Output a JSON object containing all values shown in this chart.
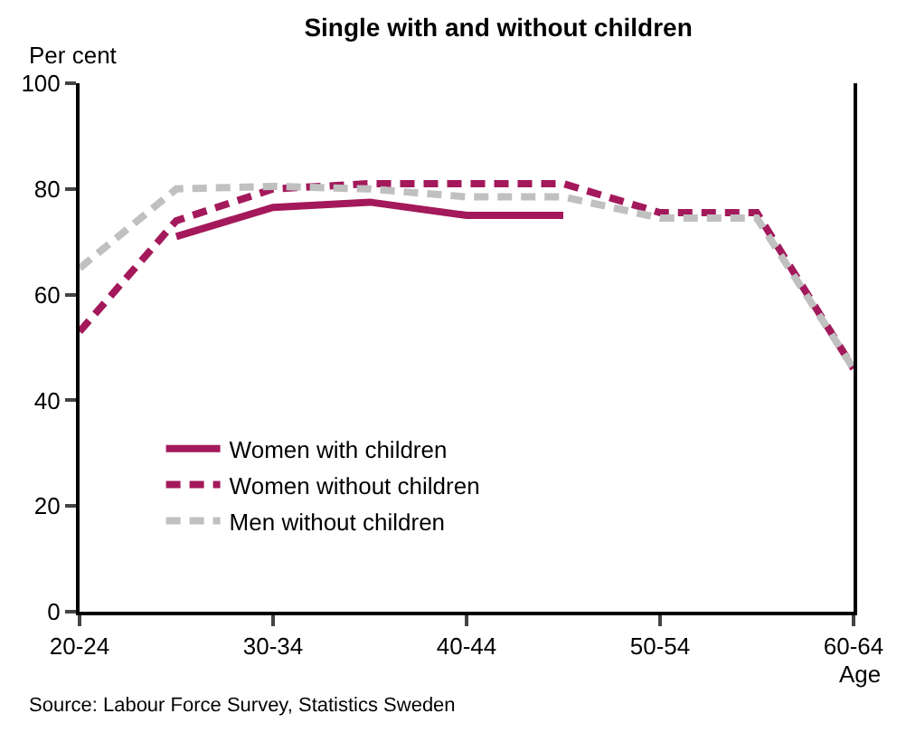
{
  "chart_data": {
    "type": "line",
    "title": "Single with and without children",
    "ylabel": "Per cent",
    "xlabel": "Age",
    "categories": [
      "20-24",
      null,
      "30-34",
      null,
      "40-44",
      null,
      "50-54",
      null,
      "60-64"
    ],
    "ylim": [
      0,
      100
    ],
    "yticks": [
      0,
      20,
      40,
      60,
      80,
      100
    ],
    "legend": "bottom left",
    "marker": "none",
    "series": [
      {
        "name": "Women with children",
        "color": "#a3195b",
        "line_style": "solid",
        "values": [
          null,
          71,
          76.5,
          77.5,
          75,
          75,
          null,
          null,
          null
        ]
      },
      {
        "name": "Women without children",
        "color": "#a3195b",
        "line_style": "dashed",
        "values": [
          53,
          74,
          80,
          81,
          81,
          81,
          75.5,
          75.5,
          46
        ]
      },
      {
        "name": "Men without children",
        "color": "#c0c0c0",
        "line_style": "dashed",
        "values": [
          65,
          80,
          80.5,
          80,
          78.5,
          78.5,
          74.5,
          74.5,
          46
        ]
      }
    ],
    "annotations": [
      "Source: Labour Force Survey, Statistics Sweden"
    ]
  }
}
